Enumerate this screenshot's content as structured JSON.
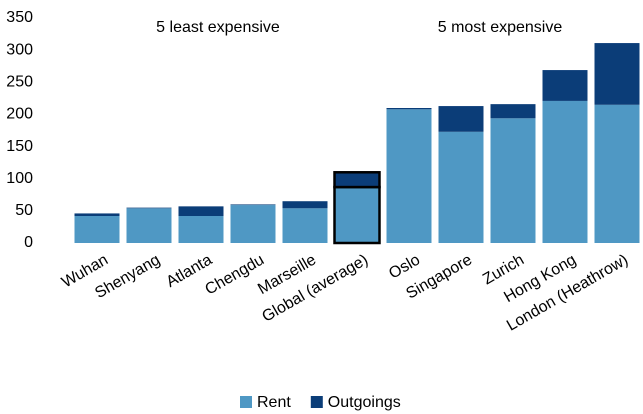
{
  "chart_data": {
    "type": "stacked_bar",
    "annotations": [
      "5 least expensive",
      "5 most expensive"
    ],
    "categories": [
      "Wuhan",
      "Shenyang",
      "Atlanta",
      "Chengdu",
      "Marseille",
      "Global (average)",
      "Oslo",
      "Singapore",
      "Zurich",
      "Hong Kong",
      "London (Heathrow)"
    ],
    "series": [
      {
        "name": "Rent",
        "color": "#4f98c4",
        "values": [
          42,
          54,
          42,
          59,
          54,
          87,
          208,
          173,
          194,
          221,
          215
        ]
      },
      {
        "name": "Outgoings",
        "color": "#0b3d78",
        "values": [
          4,
          1,
          15,
          1,
          11,
          23,
          2,
          40,
          22,
          48,
          96
        ]
      }
    ],
    "highlight_index": 5,
    "ylim": [
      0,
      350
    ],
    "yticks": [
      0,
      50,
      100,
      150,
      200,
      250,
      300,
      350
    ],
    "grid": false,
    "legend": "bottom"
  }
}
